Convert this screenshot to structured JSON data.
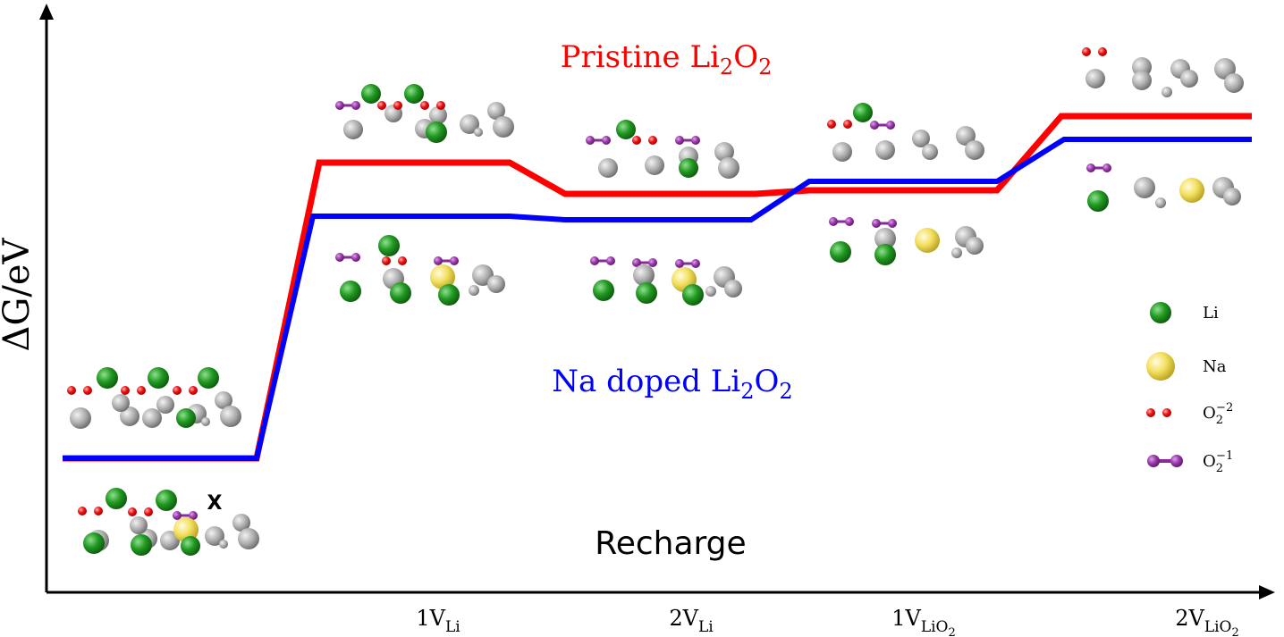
{
  "axes": {
    "y_label": "ΔG/eV",
    "x_label": "Recharge"
  },
  "steps": [
    [
      "1V",
      "Li"
    ],
    [
      "2V",
      "Li"
    ],
    [
      "1V",
      "LiO",
      "2"
    ],
    [
      "2V",
      "LiO",
      "2"
    ]
  ],
  "series": [
    {
      "name": [
        "Pristine Li",
        "2",
        "O",
        "2"
      ],
      "color": "#ff0000"
    },
    {
      "name": [
        "Na doped Li",
        "2",
        "O",
        "2"
      ],
      "color": "#0000ff"
    }
  ],
  "legend": [
    {
      "label": [
        "Li"
      ]
    },
    {
      "label": [
        "Na"
      ]
    },
    {
      "label": [
        "O",
        "2",
        "−2"
      ]
    },
    {
      "label": [
        "O",
        "2",
        "−1"
      ]
    }
  ],
  "marker": "X"
}
